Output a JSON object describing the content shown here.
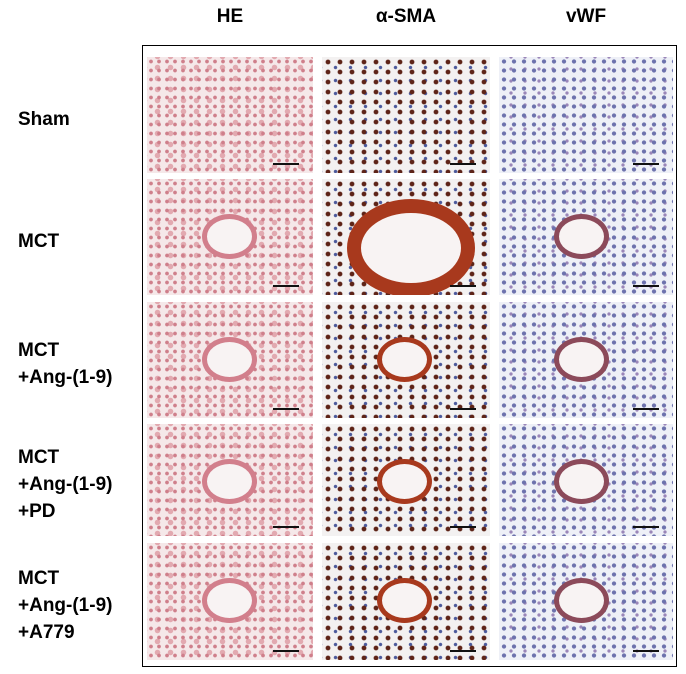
{
  "column_headers": [
    "HE",
    "α-SMA",
    "vWF"
  ],
  "row_labels": [
    [
      "Sham"
    ],
    [
      "MCT"
    ],
    [
      "MCT",
      "+Ang-(1-9)"
    ],
    [
      "MCT",
      "+Ang-(1-9)",
      "+PD"
    ],
    [
      "MCT",
      "+Ang-(1-9)",
      "+A779"
    ]
  ]
}
